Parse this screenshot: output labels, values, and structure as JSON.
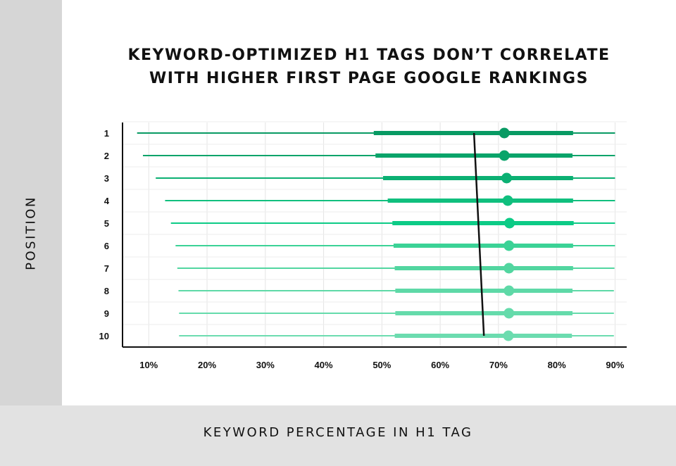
{
  "chart_data": {
    "type": "scatter",
    "title_lines": [
      "KEYWORD-OPTIMIZED H1 TAGS DON’T CORRELATE",
      "WITH HIGHER FIRST PAGE GOOGLE RANKINGS"
    ],
    "xlabel": "KEYWORD PERCENTAGE IN H1 TAG",
    "ylabel": "POSITION",
    "x_ticks": [
      "10%",
      "20%",
      "30%",
      "40%",
      "50%",
      "60%",
      "70%",
      "80%",
      "90%"
    ],
    "xlim": [
      5.5,
      92
    ],
    "categories": [
      "1",
      "2",
      "3",
      "4",
      "5",
      "6",
      "7",
      "8",
      "9",
      "10"
    ],
    "series": [
      {
        "values": [
          {
            "position": "1",
            "min": 8.0,
            "q1": 48.6,
            "mean": 71.0,
            "q3": 82.8,
            "max": 90.0,
            "color": "#089a63"
          },
          {
            "position": "2",
            "min": 9.0,
            "q1": 48.9,
            "mean": 71.0,
            "q3": 82.7,
            "max": 90.0,
            "color": "#09a46a"
          },
          {
            "position": "3",
            "min": 11.2,
            "q1": 50.2,
            "mean": 71.4,
            "q3": 82.8,
            "max": 90.0,
            "color": "#0bb073"
          },
          {
            "position": "4",
            "min": 12.8,
            "q1": 51.0,
            "mean": 71.6,
            "q3": 82.8,
            "max": 90.0,
            "color": "#10bf7e"
          },
          {
            "position": "5",
            "min": 13.8,
            "q1": 51.8,
            "mean": 71.9,
            "q3": 82.9,
            "max": 90.0,
            "color": "#0ccb86"
          },
          {
            "position": "6",
            "min": 14.6,
            "q1": 52.0,
            "mean": 71.8,
            "q3": 82.8,
            "max": 90.0,
            "color": "#3bd296"
          },
          {
            "position": "7",
            "min": 14.9,
            "q1": 52.2,
            "mean": 71.8,
            "q3": 82.8,
            "max": 89.9,
            "color": "#52d6a0"
          },
          {
            "position": "8",
            "min": 15.1,
            "q1": 52.3,
            "mean": 71.8,
            "q3": 82.7,
            "max": 89.8,
            "color": "#5ed9a7"
          },
          {
            "position": "9",
            "min": 15.2,
            "q1": 52.3,
            "mean": 71.8,
            "q3": 82.7,
            "max": 89.8,
            "color": "#65dbab"
          },
          {
            "position": "10",
            "min": 15.2,
            "q1": 52.2,
            "mean": 71.7,
            "q3": 82.6,
            "max": 89.8,
            "color": "#6cdcaf"
          }
        ]
      }
    ],
    "trend_line": {
      "start": {
        "position": "1",
        "x": 65.8
      },
      "end": {
        "position": "10",
        "x": 67.5
      },
      "color": "#111111"
    },
    "grid": true
  }
}
